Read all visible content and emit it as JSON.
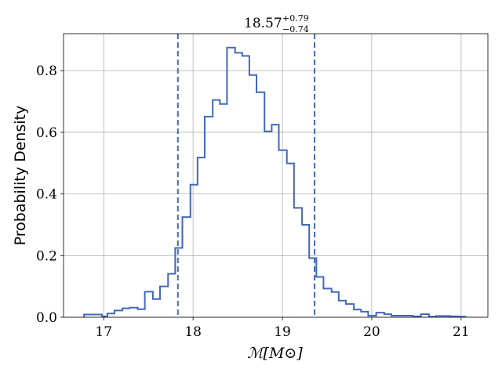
{
  "chart_data": {
    "type": "histogram",
    "title": {
      "value": "18.57",
      "upper": "+0.79",
      "lower": "−0.74"
    },
    "xlabel": "ℳ[M⊙]",
    "ylabel": "Probability Density",
    "xlim": [
      16.55,
      21.3
    ],
    "ylim": [
      0,
      0.92
    ],
    "xticks": [
      17,
      18,
      19,
      20,
      21
    ],
    "xtick_labels": [
      "17",
      "18",
      "19",
      "20",
      "21"
    ],
    "yticks": [
      0.0,
      0.2,
      0.4,
      0.6,
      0.8
    ],
    "ytick_labels": [
      "0.0",
      "0.2",
      "0.4",
      "0.6",
      "0.8"
    ],
    "grid": true,
    "line_color": "#4269b8",
    "credible_interval": [
      17.83,
      19.36
    ],
    "bins": [
      16.78,
      16.88,
      16.98,
      17.04,
      17.12,
      17.21,
      17.29,
      17.38,
      17.46,
      17.55,
      17.63,
      17.72,
      17.8,
      17.88,
      17.97,
      18.05,
      18.13,
      18.22,
      18.3,
      18.38,
      18.47,
      18.55,
      18.63,
      18.71,
      18.8,
      18.88,
      18.96,
      19.05,
      19.13,
      19.22,
      19.3,
      19.38,
      19.46,
      19.55,
      19.63,
      19.71,
      19.8,
      19.88,
      19.96,
      20.05,
      20.14,
      20.22,
      20.3,
      20.46,
      20.55,
      20.64,
      20.72,
      20.88,
      20.97,
      21.05
    ],
    "density": [
      0.009,
      0.009,
      0.003,
      0.012,
      0.022,
      0.029,
      0.031,
      0.026,
      0.083,
      0.059,
      0.1,
      0.141,
      0.225,
      0.325,
      0.43,
      0.518,
      0.651,
      0.705,
      0.692,
      0.875,
      0.858,
      0.848,
      0.786,
      0.73,
      0.603,
      0.625,
      0.542,
      0.499,
      0.355,
      0.3,
      0.192,
      0.131,
      0.093,
      0.082,
      0.054,
      0.043,
      0.025,
      0.018,
      0.005,
      0.015,
      0.01,
      0.005,
      0.005,
      0.003,
      0.01,
      0.002,
      0.004,
      0.003,
      0.002
    ]
  }
}
